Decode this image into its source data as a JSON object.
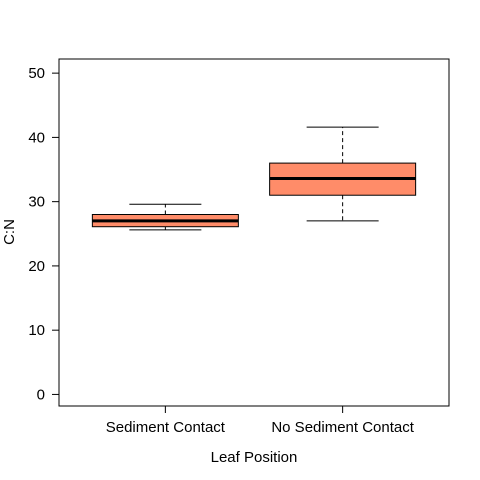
{
  "chart_data": {
    "type": "boxplot",
    "xlabel": "Leaf Position",
    "ylabel": "C:N",
    "ylim": [
      -1.8,
      52.2
    ],
    "yticks": [
      0,
      10,
      20,
      30,
      40,
      50
    ],
    "categories": [
      "Sediment Contact",
      "No Sediment Contact"
    ],
    "boxes": [
      {
        "category": "Sediment Contact",
        "whisker_low": 25.6,
        "q1": 26.1,
        "median": 27.0,
        "q3": 28.0,
        "whisker_high": 29.6
      },
      {
        "category": "No Sediment Contact",
        "whisker_low": 27.0,
        "q1": 31.0,
        "median": 33.6,
        "q3": 36.0,
        "whisker_high": 41.6
      }
    ],
    "box_fill": "#ff8c69",
    "box_stroke": "#000000",
    "grid": false,
    "legend": "none"
  }
}
